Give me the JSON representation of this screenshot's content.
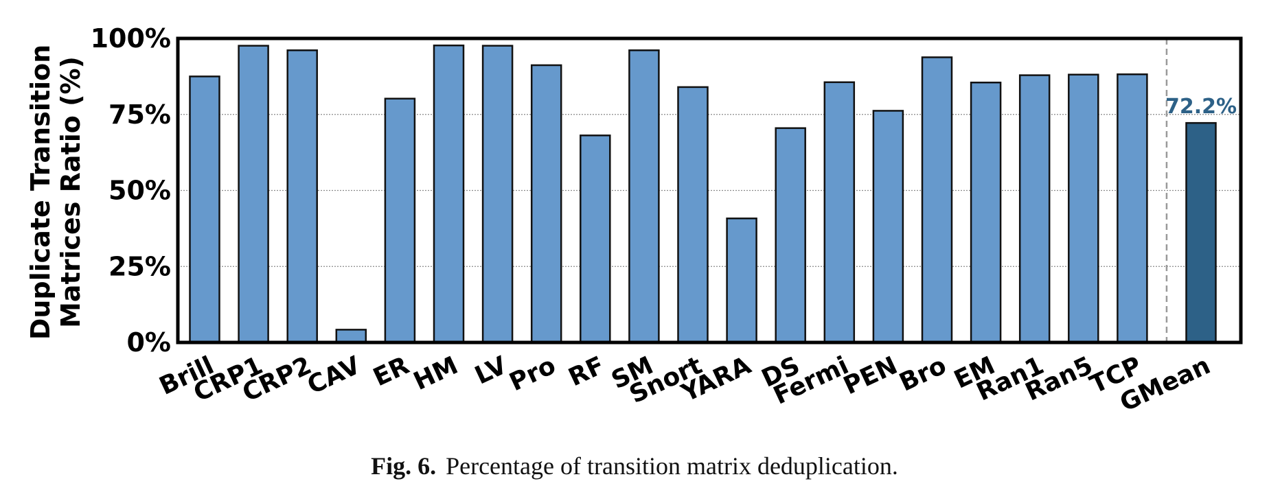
{
  "chart_data": {
    "type": "bar",
    "ylabel_line1": "Duplicate Transition",
    "ylabel_line2": "Matrices Ratio (%)",
    "ylim": [
      0,
      100
    ],
    "yticks": [
      "0%",
      "25%",
      "50%",
      "75%",
      "100%"
    ],
    "grid": true,
    "categories": [
      "Brill",
      "CRP1",
      "CRP2",
      "CAV",
      "ER",
      "HM",
      "LV",
      "Pro",
      "RF",
      "SM",
      "Snort",
      "YARA",
      "DS",
      "Fermi",
      "PEN",
      "Bro",
      "EM",
      "Ran1",
      "Ran5",
      "TCP",
      "GMean"
    ],
    "values": [
      87.5,
      97.6,
      96.1,
      4.2,
      80.2,
      97.7,
      97.6,
      91.2,
      68.1,
      96.1,
      84.0,
      40.8,
      70.5,
      85.6,
      76.2,
      93.8,
      85.5,
      87.9,
      88.1,
      88.2,
      72.2
    ],
    "gmean_label": "72.2%",
    "colors": {
      "bar": "#6699cc",
      "gmean": "#2d6187",
      "gmean_text": "#2d6187",
      "edge": "#111111"
    }
  },
  "caption": {
    "label": "Fig. 6.",
    "text": "Percentage of transition matrix deduplication."
  }
}
